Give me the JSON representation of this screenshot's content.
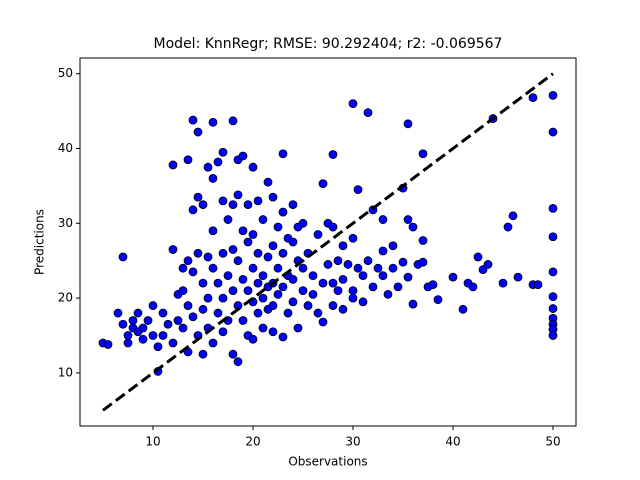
{
  "chart_data": {
    "type": "scatter",
    "title": "Model: KnnRegr; RMSE: 90.292404; r2: -0.069567",
    "x_label": "Observations",
    "y_label": "Predictions",
    "color": "#0000ff",
    "edge_color": "#000000",
    "identity_line": [
      5,
      50
    ],
    "identity_line_color": "#000000",
    "xlim": [
      2.7,
      52.3
    ],
    "ylim": [
      2.9,
      52.1
    ],
    "xticks": [
      10,
      20,
      30,
      40,
      50
    ],
    "yticks": [
      10,
      20,
      30,
      40,
      50
    ],
    "grid": false,
    "x": [
      5,
      5.5,
      6.5,
      7,
      7,
      7.5,
      7.5,
      8,
      8,
      8.5,
      8.5,
      9,
      9,
      9.5,
      10,
      10,
      10.5,
      10.5,
      11,
      11,
      11.5,
      12,
      12,
      12,
      12.5,
      12.5,
      13,
      13,
      13,
      13.5,
      13.5,
      13.5,
      13.5,
      14,
      14,
      14,
      14,
      14.5,
      14.5,
      14.5,
      14.5,
      15,
      15,
      15,
      15,
      15.5,
      15.5,
      15.5,
      15.5,
      16,
      16,
      16,
      16,
      16,
      16.5,
      16.5,
      16.5,
      17,
      17,
      17,
      17,
      17,
      17.5,
      17.5,
      17.5,
      18,
      18,
      18,
      18,
      18,
      18.5,
      18.5,
      18.5,
      18.5,
      18.5,
      19,
      19,
      19,
      19,
      19.5,
      19.5,
      19.5,
      19.5,
      20,
      20,
      20,
      20,
      20,
      20.5,
      20.5,
      20.5,
      20.5,
      21,
      21,
      21,
      21,
      21.5,
      21.5,
      21.5,
      21.5,
      22,
      22,
      22,
      22,
      22,
      22.5,
      22.5,
      22.5,
      23,
      23,
      23,
      23,
      23,
      23.5,
      23.5,
      23.5,
      24,
      24,
      24,
      24,
      24.5,
      24.5,
      24.5,
      25,
      25,
      25,
      25.5,
      25.5,
      26,
      26,
      26.5,
      26.5,
      27,
      27,
      27,
      27.5,
      27.5,
      28,
      28,
      28,
      28,
      28.5,
      28.5,
      29,
      29,
      29,
      29.5,
      30,
      30,
      30,
      30,
      30.5,
      30.5,
      31,
      31,
      31.5,
      31.5,
      32,
      32,
      32.5,
      33,
      33,
      33,
      33.5,
      34,
      34,
      34.5,
      35,
      35,
      35.5,
      35.5,
      35.5,
      36,
      36,
      36.5,
      37,
      37,
      37,
      37.5,
      38,
      38.5,
      40,
      41,
      41.5,
      42,
      42.5,
      43,
      43.5,
      44,
      45,
      45.5,
      46,
      46.5,
      48,
      48,
      48.5,
      50,
      50,
      50,
      50,
      50,
      50,
      50,
      50,
      50,
      50,
      50
    ],
    "values": [
      14,
      13.8,
      18,
      25.5,
      16.5,
      15,
      14,
      17,
      16,
      18,
      15.5,
      16,
      14.5,
      17,
      15,
      19,
      10.2,
      13.5,
      18,
      15,
      16.5,
      26.5,
      37.8,
      14,
      17,
      20.5,
      24,
      16,
      21,
      38.5,
      25,
      12.8,
      19,
      43.8,
      31.8,
      23.5,
      17.5,
      42.2,
      33.5,
      26,
      15,
      32.5,
      22,
      18.5,
      12.5,
      37.5,
      25.5,
      20,
      16,
      43.5,
      36,
      29,
      24,
      14,
      38.2,
      22,
      18,
      39.5,
      33,
      26,
      20,
      15.5,
      30.5,
      23,
      17,
      32.5,
      43.7,
      26.5,
      21,
      12.5,
      38.5,
      33.8,
      25,
      19,
      11.5,
      39,
      29,
      22.5,
      17,
      32.5,
      27.5,
      21,
      15,
      37.5,
      28.5,
      24,
      19.5,
      14.5,
      33,
      26,
      22,
      18,
      30.5,
      23,
      20,
      16,
      35.5,
      25.5,
      21.5,
      18.5,
      33.5,
      27,
      22,
      19,
      15.5,
      29.5,
      24,
      20.5,
      39.3,
      31.5,
      26,
      21.5,
      14.8,
      28,
      23,
      18,
      32.5,
      27.5,
      22.5,
      19.5,
      29.5,
      25,
      16,
      30,
      24,
      21,
      26,
      19,
      23,
      20.5,
      28.5,
      18,
      35.3,
      22,
      16.8,
      30,
      24.5,
      39.2,
      29.5,
      22,
      19,
      25,
      21,
      27,
      22.5,
      18.5,
      24.5,
      46,
      28,
      21,
      20,
      34.5,
      24,
      23,
      19.5,
      44.8,
      25,
      31.8,
      21.5,
      24,
      30.5,
      26.3,
      23,
      20.5,
      27,
      24,
      21.5,
      34.7,
      24.8,
      43.3,
      30.5,
      22.8,
      29.5,
      19.2,
      24.5,
      27.7,
      39.3,
      24.8,
      21.5,
      21.8,
      19.8,
      22.8,
      18.5,
      22,
      21.5,
      25.5,
      23.8,
      24.5,
      44,
      22,
      29.5,
      31,
      22.8,
      21.8,
      46.8,
      21.8,
      47.1,
      42.2,
      32,
      28.2,
      23.5,
      20.2,
      18.6,
      17.3,
      16.5,
      15.8,
      15
    ]
  }
}
